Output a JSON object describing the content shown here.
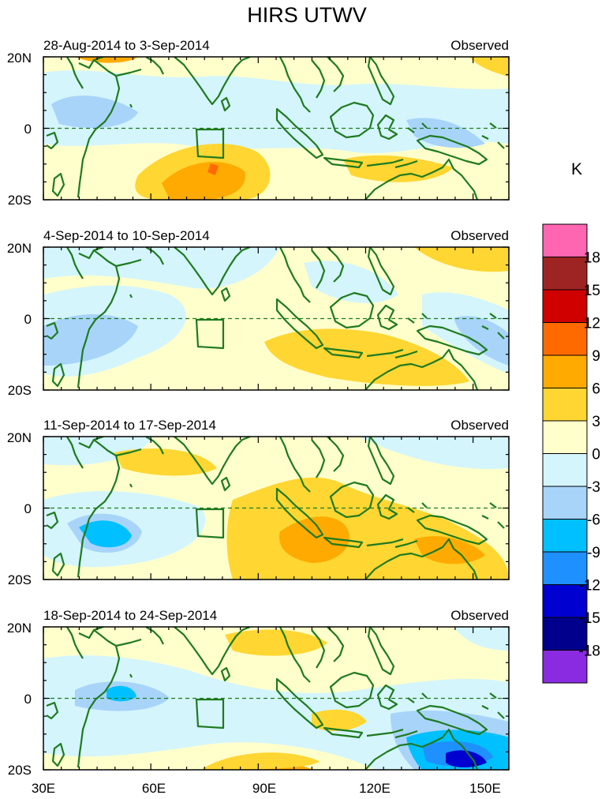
{
  "title": "HIRS UTWV",
  "unit_label": "K",
  "panels": [
    {
      "date_range": "28-Aug-2014 to 3-Sep-2014",
      "label": "Observed"
    },
    {
      "date_range": "4-Sep-2014 to 10-Sep-2014",
      "label": "Observed"
    },
    {
      "date_range": "11-Sep-2014 to 17-Sep-2014",
      "label": "Observed"
    },
    {
      "date_range": "18-Sep-2014 to 24-Sep-2014",
      "label": "Observed"
    }
  ],
  "lat_labels": [
    "20N",
    "0",
    "20S"
  ],
  "lon_labels": [
    "30E",
    "60E",
    "90E",
    "120E",
    "150E"
  ],
  "colorbar": {
    "labels": [
      "18",
      "15",
      "12",
      "9",
      "6",
      "3",
      "0",
      "-3",
      "-6",
      "-9",
      "-12",
      "-15",
      "-18"
    ],
    "colors": [
      "#ff66b2",
      "#9e2424",
      "#d00000",
      "#ff6a00",
      "#ffaa00",
      "#ffd632",
      "#ffffcc",
      "#d4f5fc",
      "#a8d4fa",
      "#00c0ff",
      "#1e90ff",
      "#0000d0",
      "#00008c",
      "#8a2be2"
    ]
  },
  "colors": {
    "coast": "#1f7a1f",
    "equator": "#1f7a1f",
    "background": "#ffffcc"
  }
}
